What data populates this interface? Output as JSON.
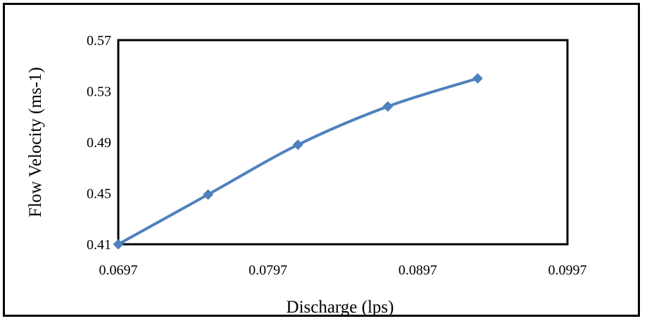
{
  "chart_data": {
    "type": "line",
    "title": "",
    "xlabel": "Discharge (lps)",
    "ylabel": "Flow Velocity (ms-1)",
    "xlim": [
      0.0697,
      0.0997
    ],
    "ylim": [
      0.41,
      0.57
    ],
    "x_ticks": [
      "0.0697",
      "0.0797",
      "0.0897",
      "0.0997"
    ],
    "y_ticks": [
      "0.41",
      "0.45",
      "0.49",
      "0.53",
      "0.57"
    ],
    "grid": false,
    "legend": "none",
    "series": [
      {
        "x": [
          0.0697,
          0.0757,
          0.0817,
          0.0877,
          0.0937
        ],
        "y": [
          0.41,
          0.449,
          0.488,
          0.518,
          0.54
        ],
        "color": "#4F81BD",
        "marker": "diamond",
        "smooth": true
      }
    ]
  }
}
